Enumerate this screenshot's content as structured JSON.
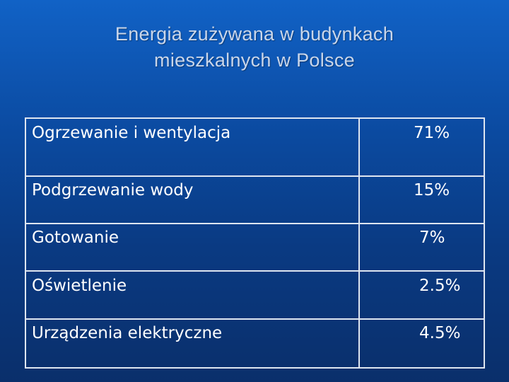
{
  "title": {
    "line1": "Energia zużywana w budynkach",
    "line2": "mieszkalnych w Polsce"
  },
  "table": {
    "rows": [
      {
        "label": "Ogrzewanie i wentylacja",
        "value": "71%"
      },
      {
        "label": "Podgrzewanie wody",
        "value": "15%"
      },
      {
        "label": "Gotowanie",
        "value": "7%"
      },
      {
        "label": "Oświetlenie",
        "value": "2.5%"
      },
      {
        "label": "Urządzenia elektryczne",
        "value": "4.5%"
      }
    ]
  },
  "colors": {
    "background_top": "#1162c6",
    "background_bottom": "#0a2f6b",
    "title_text": "#c9d6ea",
    "table_text": "#ffffff",
    "table_border": "#dfe6f0"
  }
}
